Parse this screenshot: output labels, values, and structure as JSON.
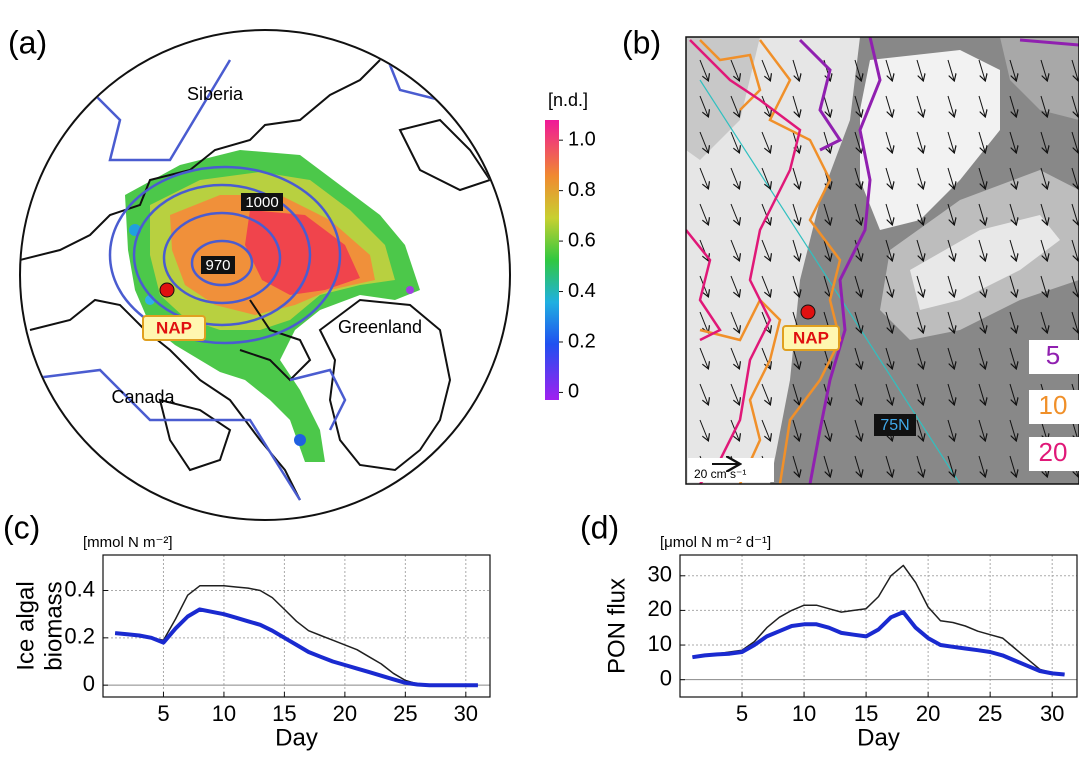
{
  "chart_data": [
    {
      "type": "map",
      "panel": "(a)",
      "regions": [
        "Siberia",
        "Greenland",
        "Canada"
      ],
      "site": "NAP",
      "contour_labels": [
        1000,
        970
      ],
      "colorbar_label": "[n.d.]",
      "clim": [
        -0.03,
        1.08
      ],
      "cticks": [
        0,
        0.2,
        0.4,
        0.6,
        0.8,
        {
          "value": 1,
          "label": "1.0"
        }
      ]
    },
    {
      "type": "map",
      "panel": "(b)",
      "site": "NAP",
      "latitude_label": "75N",
      "vector_scale_label": "20 cm s⁻¹",
      "contours": [
        {
          "level": 5,
          "color": "#9020b0"
        },
        {
          "level": 10,
          "color": "#f0902a"
        },
        {
          "level": 20,
          "color": "#e01878"
        }
      ]
    },
    {
      "type": "line",
      "panel": "(c)",
      "units": "[mmol N m⁻²]",
      "ylabel_lines": [
        "Ice algal",
        "biomass"
      ],
      "xlabel": "Day",
      "x": [
        1,
        2,
        3,
        4,
        5,
        6,
        7,
        8,
        9,
        10,
        11,
        12,
        13,
        14,
        15,
        16,
        17,
        18,
        19,
        20,
        21,
        22,
        23,
        24,
        25,
        26,
        27,
        28,
        29,
        30,
        31
      ],
      "series": [
        {
          "color": "#202020",
          "width": 1.5,
          "values": [
            0.22,
            0.215,
            0.21,
            0.2,
            0.19,
            0.28,
            0.38,
            0.42,
            0.42,
            0.42,
            0.415,
            0.41,
            0.4,
            0.37,
            0.32,
            0.27,
            0.23,
            0.21,
            0.19,
            0.17,
            0.15,
            0.12,
            0.09,
            0.05,
            0.02,
            0.005,
            0,
            0,
            0,
            0,
            0
          ]
        },
        {
          "color": "#1a2ad0",
          "width": 4,
          "values": [
            0.22,
            0.215,
            0.21,
            0.2,
            0.18,
            0.24,
            0.29,
            0.32,
            0.31,
            0.3,
            0.285,
            0.27,
            0.255,
            0.23,
            0.2,
            0.17,
            0.14,
            0.12,
            0.1,
            0.085,
            0.07,
            0.055,
            0.04,
            0.025,
            0.01,
            0.003,
            0,
            0,
            0,
            0,
            0
          ]
        }
      ],
      "xlim": [
        0,
        32
      ],
      "ylim": [
        -0.05,
        0.55
      ],
      "xticks": [
        5,
        10,
        15,
        20,
        25,
        30
      ],
      "yticks": [
        0,
        0.2,
        0.4
      ],
      "grid": true
    },
    {
      "type": "line",
      "panel": "(d)",
      "units": "[μmol N m⁻² d⁻¹]",
      "ylabel_lines": [
        "PON flux"
      ],
      "xlabel": "Day",
      "x": [
        1,
        2,
        3,
        4,
        5,
        6,
        7,
        8,
        9,
        10,
        11,
        12,
        13,
        14,
        15,
        16,
        17,
        18,
        19,
        20,
        21,
        22,
        23,
        24,
        25,
        26,
        27,
        28,
        29,
        30,
        31
      ],
      "series": [
        {
          "color": "#202020",
          "width": 1.5,
          "values": [
            6.5,
            7,
            7.5,
            8,
            8.5,
            11,
            15,
            18,
            20,
            21.5,
            21.5,
            20.5,
            19.5,
            20,
            20.5,
            24,
            30,
            33,
            28,
            21,
            17,
            16.5,
            15.5,
            14,
            13,
            12,
            9,
            6,
            3,
            2,
            1.5
          ]
        },
        {
          "color": "#1a2ad0",
          "width": 4,
          "values": [
            6.5,
            7,
            7.3,
            7.5,
            8,
            10,
            12.5,
            14,
            15.5,
            16,
            16,
            15,
            13.5,
            13,
            12.5,
            14.5,
            18,
            19.5,
            15,
            12,
            10,
            9.5,
            9,
            8.5,
            8,
            7,
            5.5,
            4,
            2.5,
            1.8,
            1.5
          ]
        }
      ],
      "xlim": [
        0,
        32
      ],
      "ylim": [
        -5,
        36
      ],
      "xticks": [
        5,
        10,
        15,
        20,
        25,
        30
      ],
      "yticks": [
        0,
        10,
        20,
        30
      ],
      "grid": true
    }
  ]
}
